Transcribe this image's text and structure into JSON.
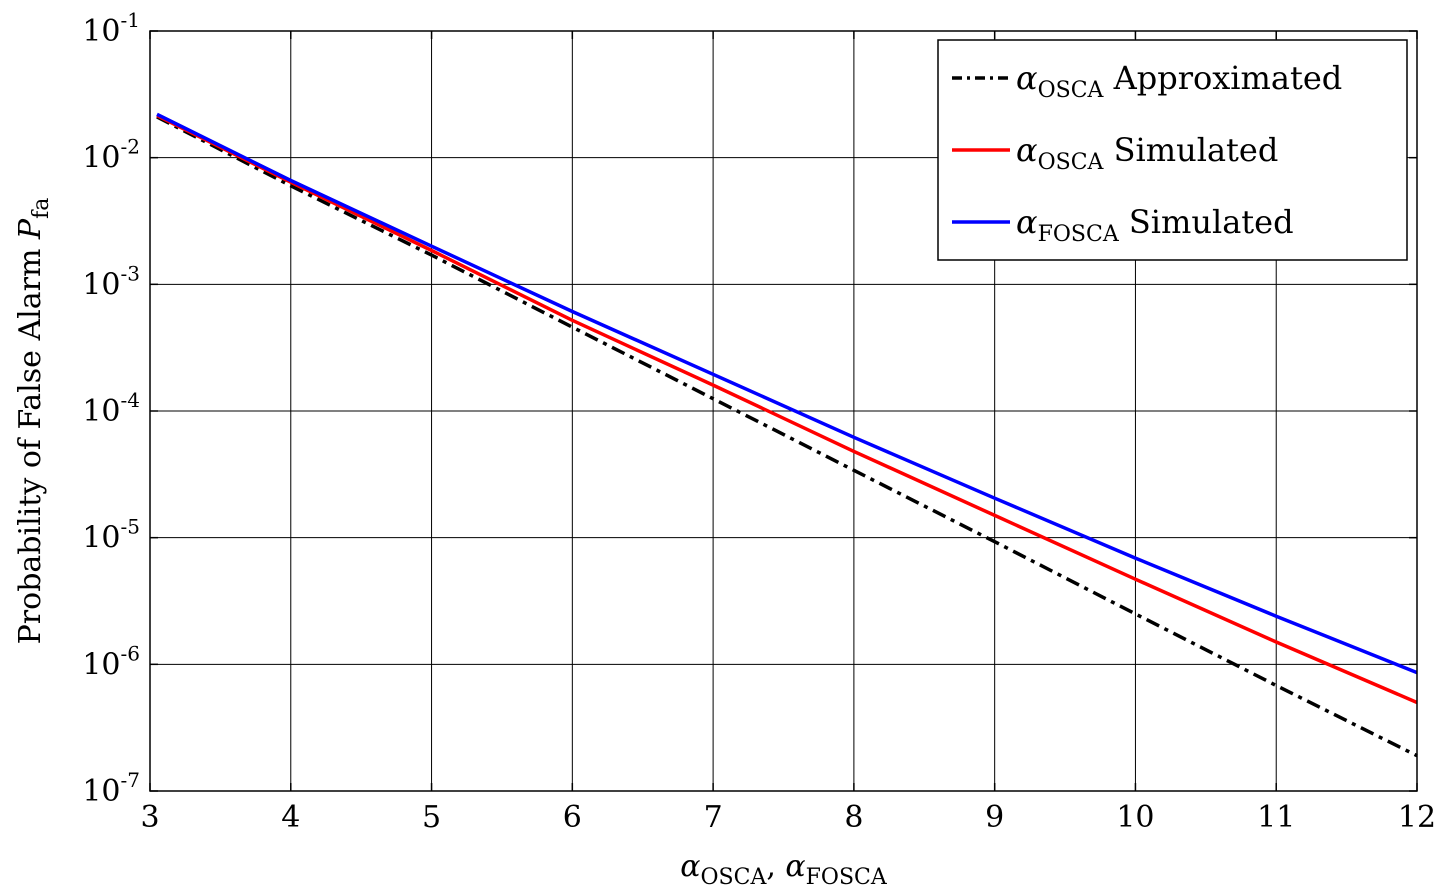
{
  "chart_data": {
    "type": "line",
    "yscale": "log",
    "title": "",
    "xlabel": {
      "parts": [
        {
          "sym": "α",
          "sub": "OSCA"
        },
        {
          "sep": ", "
        },
        {
          "sym": "α",
          "sub": "FOSCA"
        }
      ]
    },
    "ylabel": {
      "text": "Probability of False Alarm ",
      "sym": "P",
      "sub": "fa"
    },
    "xlim": [
      3,
      12
    ],
    "ylim": [
      1e-07,
      0.1
    ],
    "xticks": [
      3,
      4,
      5,
      6,
      7,
      8,
      9,
      10,
      11,
      12
    ],
    "xtick_labels": [
      "3",
      "4",
      "5",
      "6",
      "7",
      "8",
      "9",
      "10",
      "11",
      "12"
    ],
    "yticks": [
      {
        "value": 0.1,
        "base": "10",
        "exp": "-1"
      },
      {
        "value": 0.01,
        "base": "10",
        "exp": "-2"
      },
      {
        "value": 0.001,
        "base": "10",
        "exp": "-3"
      },
      {
        "value": 0.0001,
        "base": "10",
        "exp": "-4"
      },
      {
        "value": 1e-05,
        "base": "10",
        "exp": "-5"
      },
      {
        "value": 1e-06,
        "base": "10",
        "exp": "-6"
      },
      {
        "value": 1e-07,
        "base": "10",
        "exp": "-7"
      }
    ],
    "grid": true,
    "legend": {
      "position": "top-right"
    },
    "series": [
      {
        "name": "α_OSCA Approximated",
        "sym": "α",
        "sub": "OSCA",
        "label": "Approximated",
        "color": "#000000",
        "style": "dashdot",
        "x": [
          3.05,
          4,
          5,
          6,
          7,
          8,
          9,
          10,
          11,
          12
        ],
        "y": [
          0.021,
          0.006,
          0.0017,
          0.00046,
          0.000125,
          3.4e-05,
          9.3e-06,
          2.5e-06,
          6.8e-07,
          1.9e-07
        ]
      },
      {
        "name": "α_OSCA Simulated",
        "sym": "α",
        "sub": "OSCA",
        "label": "Simulated",
        "color": "#ff0000",
        "style": "solid",
        "x": [
          3.05,
          4,
          5,
          6,
          7,
          8,
          9,
          10,
          11,
          12
        ],
        "y": [
          0.0215,
          0.0064,
          0.00185,
          0.00052,
          0.00016,
          4.8e-05,
          1.5e-05,
          4.7e-06,
          1.5e-06,
          5e-07
        ]
      },
      {
        "name": "α_FOSCA Simulated",
        "sym": "α",
        "sub": "FOSCA",
        "label": "Simulated",
        "color": "#0000ff",
        "style": "solid",
        "x": [
          3.05,
          4,
          5,
          6,
          7,
          8,
          9,
          10,
          11,
          12
        ],
        "y": [
          0.022,
          0.0066,
          0.002,
          0.00061,
          0.000195,
          6.2e-05,
          2.05e-05,
          6.9e-06,
          2.4e-06,
          8.6e-07
        ]
      }
    ]
  }
}
